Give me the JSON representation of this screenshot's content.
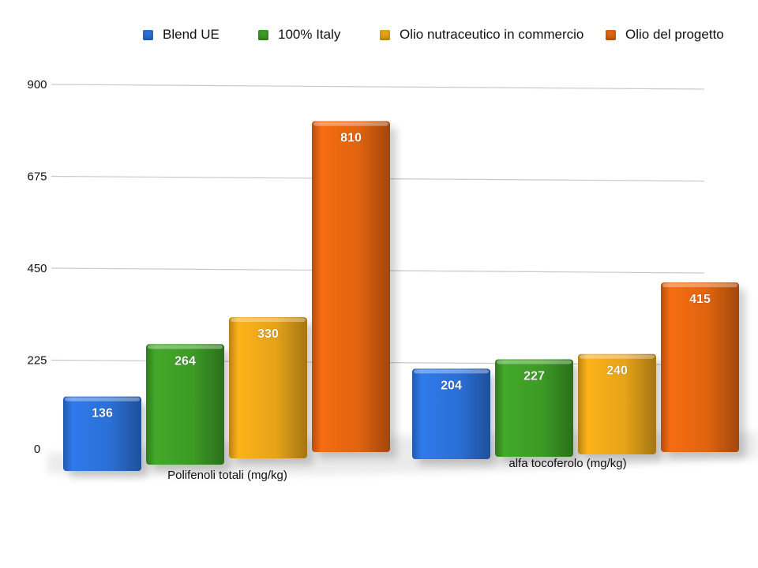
{
  "chart_data": {
    "type": "bar",
    "categories": [
      "Polifenoli totali (mg/kg)",
      "alfa tocoferolo (mg/kg)"
    ],
    "series": [
      {
        "name": "Blend UE",
        "values": [
          136,
          204
        ],
        "color": "#2b6fd6"
      },
      {
        "name": "100% Italy",
        "values": [
          264,
          227
        ],
        "color": "#3c9a25"
      },
      {
        "name": "Olio nutraceutico in commercio",
        "values": [
          330,
          240
        ],
        "color": "#e5a318"
      },
      {
        "name": "Olio del progetto",
        "values": [
          810,
          415
        ],
        "color": "#e0630f"
      }
    ],
    "yticks": [
      0,
      225,
      450,
      675,
      900
    ],
    "ylim": [
      0,
      900
    ],
    "grid": true,
    "legend_position": "top",
    "data_labels": true
  }
}
